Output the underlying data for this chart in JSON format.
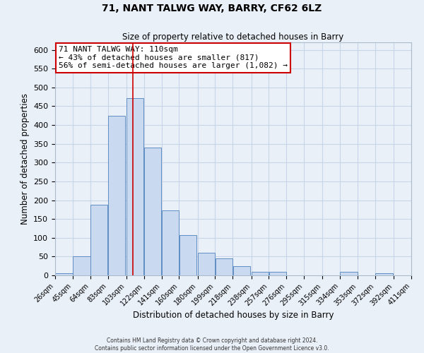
{
  "title": "71, NANT TALWG WAY, BARRY, CF62 6LZ",
  "subtitle": "Size of property relative to detached houses in Barry",
  "xlabel": "Distribution of detached houses by size in Barry",
  "ylabel": "Number of detached properties",
  "bar_left_edges": [
    26,
    45,
    64,
    83,
    103,
    122,
    141,
    160,
    180,
    199,
    218,
    238,
    257,
    276,
    295,
    315,
    334,
    353,
    372,
    392
  ],
  "bar_widths": [
    19,
    19,
    19,
    19,
    19,
    19,
    19,
    19,
    19,
    19,
    19,
    19,
    19,
    19,
    19,
    19,
    19,
    19,
    19,
    19
  ],
  "bar_heights": [
    5,
    50,
    188,
    425,
    472,
    340,
    172,
    108,
    60,
    45,
    25,
    10,
    10,
    0,
    0,
    0,
    10,
    0,
    5,
    0
  ],
  "tick_labels": [
    "26sqm",
    "45sqm",
    "64sqm",
    "83sqm",
    "103sqm",
    "122sqm",
    "141sqm",
    "160sqm",
    "180sqm",
    "199sqm",
    "218sqm",
    "238sqm",
    "257sqm",
    "276sqm",
    "295sqm",
    "315sqm",
    "334sqm",
    "353sqm",
    "372sqm",
    "392sqm",
    "411sqm"
  ],
  "xlim_left": 26,
  "xlim_right": 411,
  "ylim": [
    0,
    620
  ],
  "yticks": [
    0,
    50,
    100,
    150,
    200,
    250,
    300,
    350,
    400,
    450,
    500,
    550,
    600
  ],
  "bar_face_color": "#c9d9ef",
  "bar_edge_color": "#5f8dc3",
  "grid_color": "#c8d4e8",
  "bg_color": "#eaf0f8",
  "red_line_x": 110,
  "annotation_title": "71 NANT TALWG WAY: 110sqm",
  "annotation_line1": "← 43% of detached houses are smaller (817)",
  "annotation_line2": "56% of semi-detached houses are larger (1,082) →",
  "annotation_box_color": "#ffffff",
  "annotation_box_edgecolor": "#cc0000",
  "footer_line1": "Contains HM Land Registry data © Crown copyright and database right 2024.",
  "footer_line2": "Contains public sector information licensed under the Open Government Licence v3.0."
}
